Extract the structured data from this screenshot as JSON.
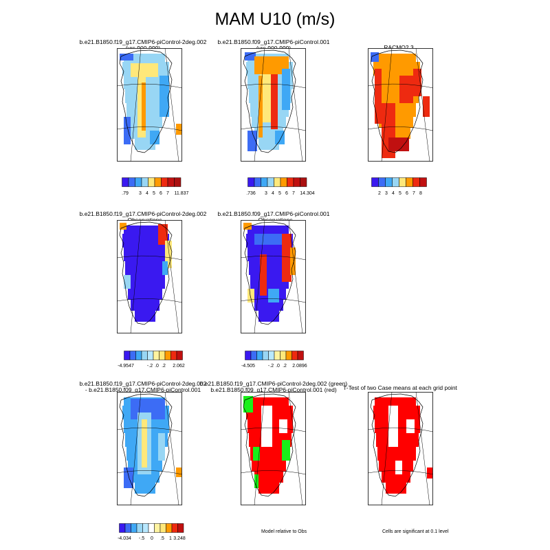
{
  "figure": {
    "title": "MAM U10 (m/s)",
    "colors": {
      "c1": "#3a19f0",
      "c2": "#3c6cf5",
      "c3": "#3fa8f5",
      "c4": "#98d6f4",
      "c5": "#ffe87a",
      "c6": "#ff9a00",
      "c7": "#ee2a10",
      "c8": "#c01010",
      "green": "#19f019",
      "red": "#ff0000"
    }
  },
  "panels": [
    {
      "id": "p1",
      "title_lines": [
        "b.e21.B1850.f19_g17.CMIP6-piControl-2deg.002",
        "(yrs 900-999)"
      ],
      "colorbar_labels": [
        ".79",
        "3",
        "4",
        "5",
        "6",
        "7",
        "11.837"
      ]
    },
    {
      "id": "p2",
      "title_lines": [
        "b.e21.B1850.f09_g17.CMIP6-piControl.001",
        "(yrs 900-999)"
      ],
      "colorbar_labels": [
        ".736",
        "3",
        "4",
        "5",
        "6",
        "7",
        "14.304"
      ]
    },
    {
      "id": "p3",
      "title_lines": [
        "RACMO2.3"
      ],
      "colorbar_labels": [
        "2",
        "3",
        "4",
        "5",
        "6",
        "7",
        "8"
      ]
    },
    {
      "id": "p4",
      "title_lines": [
        "b.e21.B1850.f19_g17.CMIP6-piControl-2deg.002",
        "- Observations"
      ],
      "colorbar_labels": [
        "-4.9547",
        "-.2",
        ".0",
        ".2",
        "2.062"
      ]
    },
    {
      "id": "p5",
      "title_lines": [
        "b.e21.B1850.f09_g17.CMIP6-piControl.001",
        "- Observations"
      ],
      "colorbar_labels": [
        "-4.505",
        "-.2",
        ".0",
        ".2",
        "2.0896"
      ]
    },
    {
      "id": "p6",
      "title_lines": [
        "b.e21.B1850.f19_g17.CMIP6-piControl-2deg.002",
        "- b.e21.B1850.f09_g17.CMIP6-piControl.001"
      ],
      "colorbar_labels": [
        "-4.034",
        "-.5",
        "0",
        ".5",
        "1",
        "3.248"
      ]
    },
    {
      "id": "p7",
      "title_lines": [
        "b.e21.B1850.f19_g17.CMIP6-piControl-2deg.002 (green)",
        "b.e21.B1850.f09_g17.CMIP6-piControl.001 (red)"
      ],
      "note": "Model relative to Obs"
    },
    {
      "id": "p8",
      "title_lines": [
        "T-Test of two Case means at each grid point"
      ],
      "note": "Cells are significant at 0.1 level"
    }
  ],
  "chart_data": [
    {
      "type": "heatmap",
      "title": "b.e21.B1850.f19_g17.CMIP6-piControl-2deg.002 (yrs 900-999)",
      "units": "m/s",
      "colorbar_min": 0.79,
      "colorbar_max": 11.837,
      "colorbar_ticks": [
        3,
        4,
        5,
        6,
        7
      ]
    },
    {
      "type": "heatmap",
      "title": "b.e21.B1850.f09_g17.CMIP6-piControl.001 (yrs 900-999)",
      "units": "m/s",
      "colorbar_min": 0.736,
      "colorbar_max": 14.304,
      "colorbar_ticks": [
        3,
        4,
        5,
        6,
        7
      ]
    },
    {
      "type": "heatmap",
      "title": "RACMO2.3",
      "units": "m/s",
      "colorbar_ticks": [
        2,
        3,
        4,
        5,
        6,
        7,
        8
      ]
    },
    {
      "type": "heatmap",
      "title": "b.e21.B1850.f19_g17.CMIP6-piControl-2deg.002 - Observations",
      "colorbar_min": -4.9547,
      "colorbar_max": 2.062,
      "colorbar_ticks": [
        -0.2,
        0.0,
        0.2
      ]
    },
    {
      "type": "heatmap",
      "title": "b.e21.B1850.f09_g17.CMIP6-piControl.001 - Observations",
      "colorbar_min": -4.505,
      "colorbar_max": 2.0896,
      "colorbar_ticks": [
        -0.2,
        0.0,
        0.2
      ]
    },
    {
      "type": "heatmap",
      "title": "b.e21.B1850.f19_g17.CMIP6-piControl-2deg.002 - b.e21.B1850.f09_g17.CMIP6-piControl.001",
      "colorbar_min": -4.034,
      "colorbar_max": 3.248,
      "colorbar_ticks": [
        -0.5,
        0,
        0.5,
        1
      ]
    },
    {
      "type": "heatmap",
      "title": "b.e21.B1850.f19_g17.CMIP6-piControl-2deg.002 (green) b.e21.B1850.f09_g17.CMIP6-piControl.001 (red)",
      "categories": [
        "green",
        "red"
      ]
    },
    {
      "type": "heatmap",
      "title": "T-Test of two Case means at each grid point",
      "categories": [
        "significant"
      ]
    }
  ]
}
